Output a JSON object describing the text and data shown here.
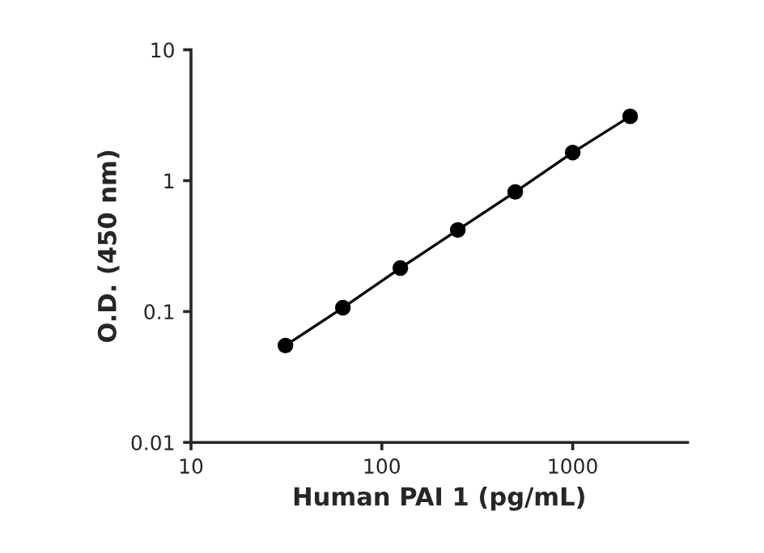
{
  "chart_data": {
    "type": "line",
    "xlabel": "Human PAI 1 (pg/mL)",
    "ylabel": "O.D. (450 nm)",
    "x": [
      31.25,
      62.5,
      125,
      250,
      500,
      1000,
      2000
    ],
    "series": [
      {
        "color": "#000000",
        "values": [
          0.055,
          0.107,
          0.215,
          0.42,
          0.82,
          1.64,
          3.1
        ]
      }
    ],
    "log": "xy",
    "marker": "circle",
    "line_style": "solid",
    "grid": false,
    "legend": false,
    "xlim": [
      10,
      4000
    ],
    "xticks": [
      10,
      100,
      1000
    ],
    "ylim": [
      0.01,
      10
    ],
    "yticks": [
      0.01,
      0.1,
      1,
      10
    ]
  }
}
